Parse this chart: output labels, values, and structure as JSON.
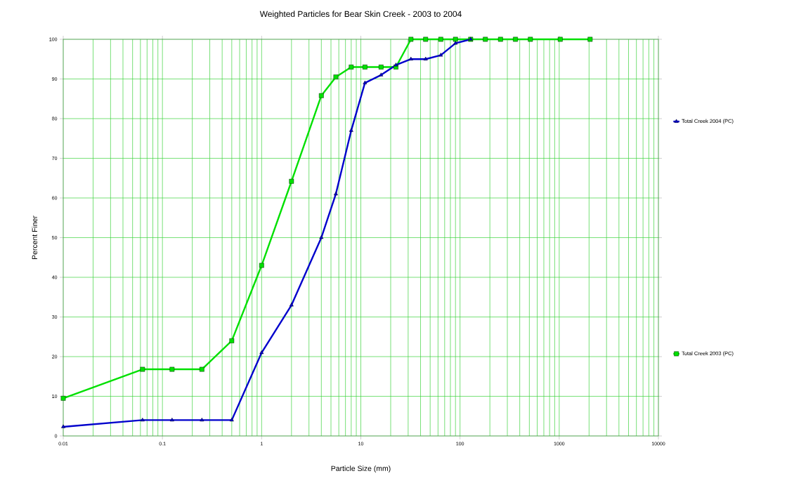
{
  "chart_data": {
    "type": "line",
    "title": "Weighted Particles for Bear Skin Creek - 2003 to 2004",
    "xlabel": "Particle Size (mm)",
    "ylabel": "Percent Finer",
    "log": "x",
    "grid": true,
    "legend": "right",
    "xlim": [
      0.01,
      10000
    ],
    "ylim": [
      0,
      100
    ],
    "xticks": [
      0.01,
      0.1,
      1,
      10,
      100,
      1000,
      10000
    ],
    "yticks": [
      0,
      10,
      20,
      30,
      40,
      50,
      60,
      70,
      80,
      90,
      100
    ],
    "series": [
      {
        "name": "Total Creek 2004 (PC)",
        "color": "#0000cc",
        "marker": "triangle",
        "x": [
          0.01,
          0.063,
          0.125,
          0.25,
          0.5,
          1,
          2,
          4,
          5.6,
          8,
          11,
          16,
          22.6,
          32,
          45,
          64,
          90,
          128
        ],
        "values": [
          2.3,
          4,
          4,
          4,
          4,
          21,
          33,
          50,
          61,
          77,
          89,
          91,
          93.5,
          95,
          95,
          96,
          99,
          100
        ]
      },
      {
        "name": "Total Creek 2003 (PC)",
        "color": "#00e000",
        "marker": "square",
        "x": [
          0.01,
          0.063,
          0.125,
          0.25,
          0.5,
          1,
          2,
          4,
          5.6,
          8,
          11,
          16,
          22.6,
          32,
          45,
          64,
          90,
          128,
          180,
          256,
          362,
          512,
          1024,
          2048
        ],
        "values": [
          9.5,
          16.8,
          16.8,
          16.8,
          24,
          43,
          64.2,
          85.8,
          90.5,
          93,
          93,
          93,
          93,
          100,
          100,
          100,
          100,
          100,
          100,
          100,
          100,
          100,
          100,
          100
        ]
      }
    ]
  }
}
